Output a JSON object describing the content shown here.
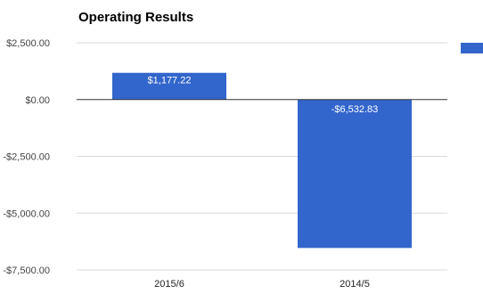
{
  "chart_data": {
    "type": "bar",
    "title": "Operating Results",
    "categories": [
      "2015/6",
      "2014/5"
    ],
    "values": [
      1177.22,
      -6532.83
    ],
    "data_labels": [
      "$1,177.22",
      "-$6,532.83"
    ],
    "ylim": [
      -7500,
      2500
    ],
    "y_ticks": [
      {
        "value": 2500,
        "label": "$2,500.00"
      },
      {
        "value": 0,
        "label": "$0.00"
      },
      {
        "value": -2500,
        "label": "-$2,500.00"
      },
      {
        "value": -5000,
        "label": "-$5,000.00"
      },
      {
        "value": -7500,
        "label": "-$7,500.00"
      }
    ],
    "grid": true,
    "legend": "right",
    "bar_color": "#3366cc",
    "grid_color": "#d9d9d9",
    "zero_line_color": "#333333"
  }
}
